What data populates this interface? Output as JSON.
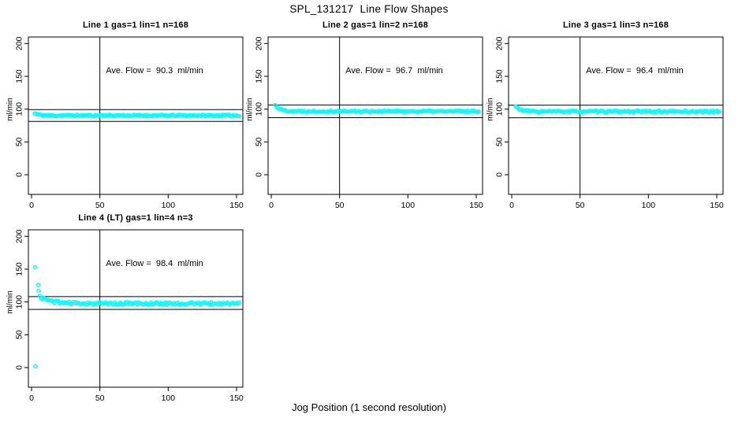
{
  "page": {
    "title": "SPL_131217  Line Flow Shapes",
    "xlabel": "Jog Position (1 second resolution)"
  },
  "style": {
    "point_color": "#00ffff",
    "axis_color": "#000000",
    "background": "#ffffff"
  },
  "chart_data": [
    {
      "type": "scatter",
      "title": "Line 1 gas=1 lin=1 n=168",
      "ave_flow": 90.3,
      "ave_flow_text": "Ave. Flow =  90.3  ml/min",
      "ylabel": "ml/min",
      "x_ticks": [
        0,
        50,
        100,
        150
      ],
      "y_ticks": [
        0,
        50,
        100,
        150,
        200
      ],
      "xlim": [
        0,
        150
      ],
      "ylim": [
        0,
        200
      ],
      "vline_x": 50,
      "ref_lines": {
        "upper": 99.3,
        "lower": 81.3
      },
      "profile": {
        "x_start": 2.5,
        "x_end": 152,
        "n": 160,
        "y_start": 93.5,
        "y_settle": 90.3,
        "tau": 3,
        "noise": 1.3,
        "seed": 11
      },
      "outliers": []
    },
    {
      "type": "scatter",
      "title": "Line 2 gas=1 lin=2 n=168",
      "ave_flow": 96.7,
      "ave_flow_text": "Ave. Flow =  96.7  ml/min",
      "ylabel": "ml/min",
      "x_ticks": [
        0,
        50,
        100,
        150
      ],
      "y_ticks": [
        0,
        50,
        100,
        150,
        200
      ],
      "xlim": [
        0,
        150
      ],
      "ylim": [
        0,
        200
      ],
      "vline_x": 50,
      "ref_lines": {
        "upper": 106.4,
        "lower": 87.0
      },
      "profile": {
        "x_start": 3,
        "x_end": 152,
        "n": 160,
        "y_start": 106,
        "y_settle": 96.7,
        "tau": 3.5,
        "noise": 1.1,
        "seed": 22
      },
      "outliers": []
    },
    {
      "type": "scatter",
      "title": "Line 3 gas=1 lin=3 n=168",
      "ave_flow": 96.4,
      "ave_flow_text": "Ave. Flow =  96.4  ml/min",
      "ylabel": "ml/min",
      "x_ticks": [
        0,
        50,
        100,
        150
      ],
      "y_ticks": [
        0,
        50,
        100,
        150,
        200
      ],
      "xlim": [
        0,
        150
      ],
      "ylim": [
        0,
        200
      ],
      "vline_x": 50,
      "ref_lines": {
        "upper": 106.0,
        "lower": 86.8
      },
      "profile": {
        "x_start": 3,
        "x_end": 152,
        "n": 160,
        "y_start": 104,
        "y_settle": 96.4,
        "tau": 3.5,
        "noise": 1.2,
        "seed": 33
      },
      "outliers": []
    },
    {
      "type": "scatter",
      "title": "Line 4 (LT) gas=1 lin=4 n=3",
      "ave_flow": 98.4,
      "ave_flow_text": "Ave. Flow =  98.4  ml/min",
      "ylabel": "ml/min",
      "x_ticks": [
        0,
        50,
        100,
        150
      ],
      "y_ticks": [
        0,
        50,
        100,
        150,
        200
      ],
      "xlim": [
        0,
        150
      ],
      "ylim": [
        0,
        200
      ],
      "vline_x": 50,
      "ref_lines": {
        "upper": 108.2,
        "lower": 88.6
      },
      "profile": {
        "x_start": 6,
        "x_end": 152,
        "n": 150,
        "y_start": 108,
        "y_settle": 97.6,
        "tau": 9,
        "noise": 1.9,
        "seed": 44
      },
      "outliers": [
        [
          2.5,
          153
        ],
        [
          5.0,
          126
        ],
        [
          5.2,
          117
        ],
        [
          2.8,
          2
        ]
      ]
    }
  ]
}
